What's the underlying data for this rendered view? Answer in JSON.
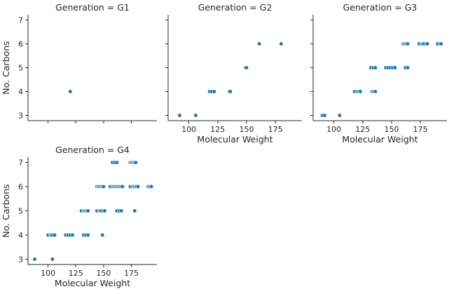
{
  "chart_data": {
    "type": "scatter",
    "facet_variable": "Generation",
    "xlabel": "Molecular Weight",
    "ylabel": "No. Carbons",
    "xlim": [
      82,
      198
    ],
    "ylim": [
      2.78,
      7.22
    ],
    "xticks": [
      100,
      125,
      150,
      175
    ],
    "yticks": [
      3,
      4,
      5,
      6,
      7
    ],
    "color": "#1f77b4",
    "grid": false,
    "panels": [
      {
        "title": "Generation = G1",
        "show_xlabel": false,
        "show_ylabel": true,
        "show_xticklabels": false,
        "show_yticklabels": true,
        "points": [
          [
            120,
            4
          ]
        ]
      },
      {
        "title": "Generation = G2",
        "show_xlabel": true,
        "show_ylabel": false,
        "show_xticklabels": true,
        "show_yticklabels": false,
        "points": [
          [
            92,
            3
          ],
          [
            106,
            3
          ],
          [
            118,
            4
          ],
          [
            120,
            4
          ],
          [
            122,
            4
          ],
          [
            135,
            4
          ],
          [
            136,
            4
          ],
          [
            149,
            5
          ],
          [
            150,
            5
          ],
          [
            161,
            6
          ],
          [
            180,
            6
          ]
        ]
      },
      {
        "title": "Generation = G3",
        "show_xlabel": true,
        "show_ylabel": false,
        "show_xticklabels": true,
        "show_yticklabels": false,
        "points": [
          [
            90,
            3
          ],
          [
            92,
            3
          ],
          [
            105,
            3
          ],
          [
            118,
            4
          ],
          [
            120,
            4
          ],
          [
            121,
            4
          ],
          [
            122,
            4
          ],
          [
            123,
            4
          ],
          [
            133,
            4
          ],
          [
            134,
            4
          ],
          [
            135,
            4
          ],
          [
            136,
            4
          ],
          [
            132,
            5
          ],
          [
            134,
            5
          ],
          [
            136,
            5
          ],
          [
            145,
            5
          ],
          [
            147,
            5
          ],
          [
            149,
            5
          ],
          [
            151,
            5
          ],
          [
            153,
            5
          ],
          [
            162,
            5
          ],
          [
            164,
            5
          ],
          [
            160,
            6
          ],
          [
            161,
            6
          ],
          [
            162,
            6
          ],
          [
            163,
            6
          ],
          [
            164,
            6
          ],
          [
            174,
            6
          ],
          [
            176,
            6
          ],
          [
            177,
            6
          ],
          [
            178,
            6
          ],
          [
            180,
            6
          ],
          [
            181,
            6
          ],
          [
            190,
            6
          ],
          [
            192,
            6
          ],
          [
            193,
            6
          ]
        ]
      },
      {
        "title": "Generation = G4",
        "show_xlabel": true,
        "show_ylabel": true,
        "show_xticklabels": true,
        "show_yticklabels": true,
        "points": [
          [
            88,
            3
          ],
          [
            104,
            3
          ],
          [
            100,
            4
          ],
          [
            102,
            4
          ],
          [
            103,
            4
          ],
          [
            104,
            4
          ],
          [
            106,
            4
          ],
          [
            116,
            4
          ],
          [
            118,
            4
          ],
          [
            120,
            4
          ],
          [
            122,
            4
          ],
          [
            132,
            4
          ],
          [
            134,
            4
          ],
          [
            136,
            4
          ],
          [
            149,
            4
          ],
          [
            130,
            5
          ],
          [
            132,
            5
          ],
          [
            133,
            5
          ],
          [
            134,
            5
          ],
          [
            135,
            5
          ],
          [
            136,
            5
          ],
          [
            144,
            5
          ],
          [
            146,
            5
          ],
          [
            147,
            5
          ],
          [
            148,
            5
          ],
          [
            150,
            5
          ],
          [
            151,
            5
          ],
          [
            162,
            5
          ],
          [
            164,
            5
          ],
          [
            166,
            5
          ],
          [
            178,
            5
          ],
          [
            144,
            6
          ],
          [
            145,
            6
          ],
          [
            146,
            6
          ],
          [
            147,
            6
          ],
          [
            148,
            6
          ],
          [
            149,
            6
          ],
          [
            150,
            6
          ],
          [
            156,
            6
          ],
          [
            158,
            6
          ],
          [
            159,
            6
          ],
          [
            160,
            6
          ],
          [
            161,
            6
          ],
          [
            162,
            6
          ],
          [
            163,
            6
          ],
          [
            164,
            6
          ],
          [
            165,
            6
          ],
          [
            166,
            6
          ],
          [
            167,
            6
          ],
          [
            174,
            6
          ],
          [
            176,
            6
          ],
          [
            177,
            6
          ],
          [
            178,
            6
          ],
          [
            179,
            6
          ],
          [
            180,
            6
          ],
          [
            181,
            6
          ],
          [
            190,
            6
          ],
          [
            191,
            6
          ],
          [
            192,
            6
          ],
          [
            193,
            6
          ],
          [
            158,
            7
          ],
          [
            160,
            7
          ],
          [
            162,
            7
          ],
          [
            174,
            7
          ],
          [
            175,
            7
          ],
          [
            176,
            7
          ],
          [
            177,
            7
          ],
          [
            178,
            7
          ],
          [
            179,
            7
          ]
        ]
      }
    ]
  }
}
